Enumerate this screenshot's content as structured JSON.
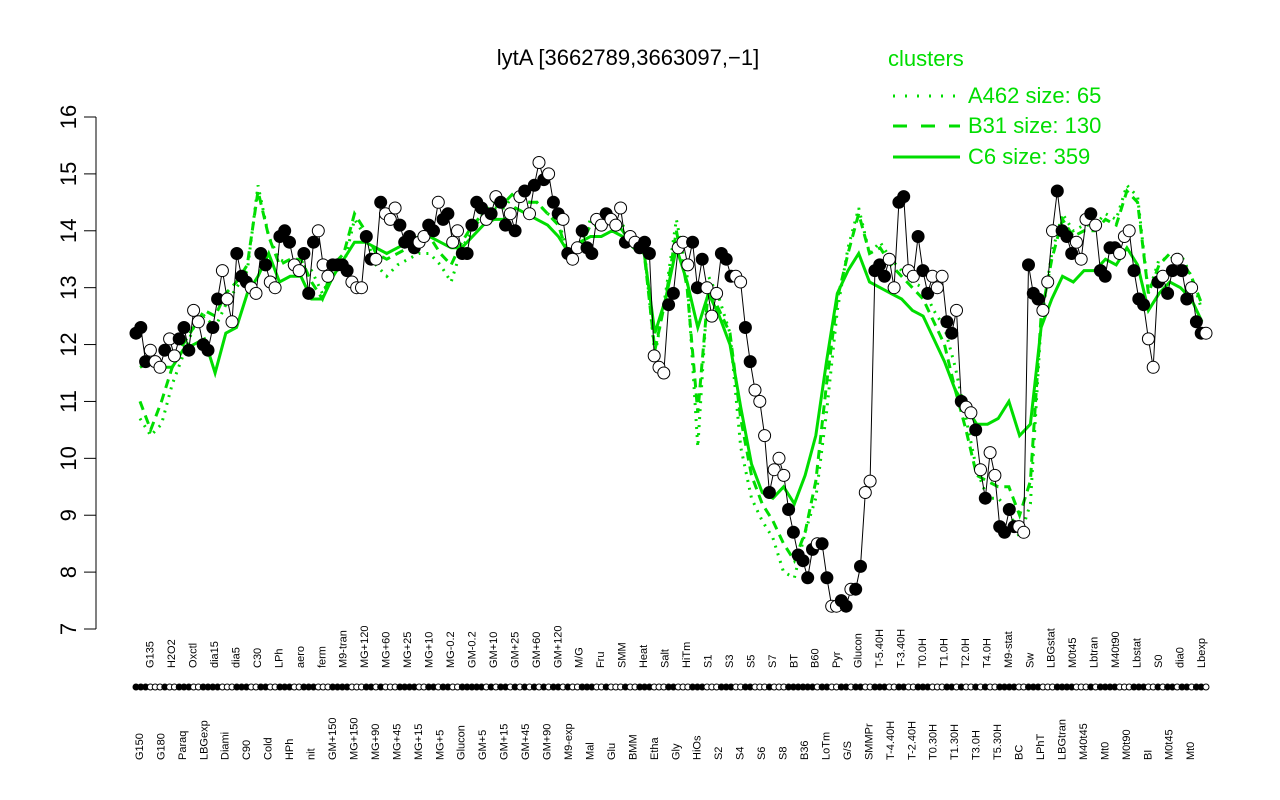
{
  "chart_data": {
    "type": "line",
    "title": "lytA [3662789,3663097,−1]",
    "xlabel": "",
    "ylabel": "",
    "ylim": [
      7,
      16
    ],
    "yticks": [
      "7",
      "8",
      "9",
      "10",
      "11",
      "12",
      "13",
      "14",
      "15",
      "16"
    ],
    "legend": {
      "title": "clusters",
      "placement": "top-right",
      "color": "#00dd00",
      "entries": [
        {
          "label": "A462 size: 65",
          "style": "dotted"
        },
        {
          "label": "B31 size: 130",
          "style": "dashed"
        },
        {
          "label": "C6 size: 359",
          "style": "solid"
        }
      ]
    },
    "tick_labels_row1": [
      "G150",
      "G135",
      "G180",
      "H2O2",
      "Paraq",
      "Oxctl",
      "LBGexp",
      "dia15",
      "Diami",
      "dia5",
      "C90",
      "C30",
      "Cold",
      "LPh",
      "HPh",
      "aero",
      "nit",
      "ferm",
      "GM+150",
      "M9-tran",
      "MG+150",
      "MG+120",
      "MG+90",
      "MG+60",
      "MG+45",
      "MG+25",
      "MG+15",
      "MG+10",
      "MG+5",
      "MG-0.2",
      "Glucon",
      "GM-0.2",
      "GM+5",
      "GM+10",
      "GM+15",
      "GM+25",
      "GM+45",
      "GM+60",
      "GM+90",
      "GM+120",
      "M9-exp",
      "M/G",
      "Mal",
      "Fru",
      "Glu",
      "SMM",
      "BMM",
      "Heat",
      "Etha",
      "Salt",
      "Gly",
      "HiTm",
      "HiOs",
      "S1",
      "S2",
      "S3",
      "S4",
      "S5",
      "S6",
      "S7",
      "S8",
      "BT",
      "B36",
      "B60",
      "LoTm",
      "Pyr",
      "G/S",
      "Glucon",
      "SMMPr",
      "T-5.40H",
      "T-4.40H",
      "T-3.40H",
      "T-2.40H",
      "T0.0H",
      "T0.30H",
      "T1.0H",
      "T1.30H",
      "T2.0H",
      "T3.0H",
      "T4.0H",
      "T5.30H",
      "M9-stat",
      "BC",
      "Sw",
      "LPhT",
      "LBGstat",
      "LBGtran",
      "M0t45",
      "M40t45",
      "Lbtran",
      "Mt0",
      "M40t90",
      "M0t90",
      "Lbstat",
      "BI",
      "S0",
      "M0t45",
      "dia0",
      "Mt0",
      "Lbexp"
    ],
    "series": [
      {
        "style": "dotted",
        "values": [
          10.7,
          10.4,
          10.6,
          11.3,
          11.8,
          12.3,
          12.5,
          12.3,
          12.7,
          13.0,
          13.3,
          14.8,
          13.9,
          13.5,
          13.4,
          13.4,
          13.3,
          12.9,
          13.3,
          13.4,
          14.2,
          13.9,
          13.4,
          13.2,
          13.4,
          13.5,
          13.6,
          13.6,
          13.4,
          13.1,
          13.7,
          14.0,
          14.3,
          14.4,
          14.4,
          14.7,
          14.5,
          14.5,
          14.3,
          14.2,
          13.5,
          13.7,
          14.2,
          14.1,
          14.2,
          14.1,
          13.8,
          13.7,
          11.8,
          12.9,
          14.2,
          13.2,
          10.2,
          13.2,
          12.8,
          12.2,
          10.2,
          9.3,
          8.9,
          8.6,
          8.0,
          7.9,
          8.7,
          9.3,
          10.8,
          12.6,
          13.7,
          14.4,
          13.6,
          13.8,
          13.5,
          13.3,
          13.1,
          13.0,
          12.6,
          12.3,
          11.6,
          10.7,
          9.8,
          9.3,
          9.3,
          9.1,
          8.6,
          9.2,
          12.4,
          13.6,
          14.3,
          14.0,
          14.1,
          14.1,
          14.3,
          14.2,
          14.8,
          14.6,
          12.9,
          13.5,
          13.5,
          13.6,
          13.2,
          12.6
        ]
      },
      {
        "style": "dashed",
        "values": [
          11.0,
          10.5,
          11.0,
          11.6,
          12.0,
          12.3,
          12.6,
          12.5,
          12.9,
          13.1,
          13.4,
          14.7,
          13.9,
          13.4,
          13.5,
          13.5,
          13.1,
          12.8,
          13.4,
          13.6,
          14.3,
          14.0,
          13.6,
          13.5,
          13.6,
          13.7,
          13.8,
          13.9,
          13.6,
          13.4,
          13.8,
          14.1,
          14.3,
          14.5,
          14.5,
          14.7,
          14.5,
          14.5,
          14.3,
          14.1,
          13.5,
          13.7,
          14.1,
          14.1,
          14.2,
          14.0,
          13.7,
          13.6,
          11.9,
          12.8,
          14.0,
          13.0,
          10.8,
          13.0,
          12.6,
          12.2,
          10.7,
          9.7,
          9.2,
          8.9,
          8.5,
          8.2,
          8.7,
          9.6,
          11.3,
          12.8,
          13.6,
          14.3,
          13.6,
          13.7,
          13.4,
          13.2,
          13.0,
          12.8,
          12.4,
          12.0,
          11.2,
          10.5,
          9.7,
          9.6,
          9.5,
          9.5,
          9.0,
          9.6,
          12.5,
          13.5,
          14.2,
          13.9,
          14.0,
          14.0,
          14.2,
          14.1,
          14.7,
          14.5,
          12.9,
          13.4,
          13.6,
          13.5,
          13.2,
          12.7
        ]
      },
      {
        "style": "solid",
        "values": [
          11.6,
          11.7,
          11.6,
          11.6,
          11.9,
          12.0,
          12.1,
          11.5,
          12.2,
          12.3,
          12.9,
          13.2,
          13.6,
          13.1,
          13.2,
          13.2,
          12.8,
          12.8,
          13.2,
          13.5,
          13.8,
          13.8,
          13.7,
          13.6,
          13.7,
          13.8,
          13.9,
          13.9,
          13.8,
          13.7,
          13.7,
          13.9,
          14.1,
          14.2,
          14.2,
          14.4,
          14.3,
          14.2,
          14.1,
          13.9,
          13.6,
          13.8,
          13.9,
          13.9,
          14.0,
          13.9,
          13.7,
          13.6,
          12.2,
          12.8,
          13.7,
          13.1,
          12.3,
          12.9,
          12.5,
          12.0,
          10.9,
          9.9,
          9.4,
          9.3,
          9.5,
          9.2,
          9.7,
          10.4,
          11.7,
          12.9,
          13.3,
          13.6,
          13.1,
          13.0,
          12.9,
          12.8,
          12.6,
          12.5,
          12.1,
          11.7,
          11.2,
          10.9,
          10.6,
          10.6,
          10.7,
          11.0,
          10.4,
          10.6,
          12.3,
          12.8,
          13.2,
          13.1,
          13.3,
          13.3,
          13.5,
          13.4,
          13.7,
          13.4,
          12.6,
          12.9,
          13.1,
          13.0,
          12.8,
          12.4
        ]
      }
    ],
    "points": [
      {
        "v": 12.2,
        "f": 1
      },
      {
        "v": 12.3,
        "f": 1
      },
      {
        "v": 11.7,
        "f": 1
      },
      {
        "v": 11.9,
        "f": 0
      },
      {
        "v": 11.7,
        "f": 0
      },
      {
        "v": 11.6,
        "f": 0
      },
      {
        "v": 11.9,
        "f": 1
      },
      {
        "v": 12.1,
        "f": 0
      },
      {
        "v": 11.8,
        "f": 0
      },
      {
        "v": 12.1,
        "f": 1
      },
      {
        "v": 12.3,
        "f": 1
      },
      {
        "v": 11.9,
        "f": 1
      },
      {
        "v": 12.6,
        "f": 0
      },
      {
        "v": 12.4,
        "f": 0
      },
      {
        "v": 12.0,
        "f": 1
      },
      {
        "v": 11.9,
        "f": 1
      },
      {
        "v": 12.3,
        "f": 1
      },
      {
        "v": 12.8,
        "f": 1
      },
      {
        "v": 13.3,
        "f": 0
      },
      {
        "v": 12.8,
        "f": 0
      },
      {
        "v": 12.4,
        "f": 0
      },
      {
        "v": 13.6,
        "f": 1
      },
      {
        "v": 13.2,
        "f": 1
      },
      {
        "v": 13.1,
        "f": 1
      },
      {
        "v": 13.0,
        "f": 0
      },
      {
        "v": 12.9,
        "f": 0
      },
      {
        "v": 13.6,
        "f": 1
      },
      {
        "v": 13.4,
        "f": 1
      },
      {
        "v": 13.1,
        "f": 0
      },
      {
        "v": 13.0,
        "f": 0
      },
      {
        "v": 13.9,
        "f": 1
      },
      {
        "v": 14.0,
        "f": 1
      },
      {
        "v": 13.8,
        "f": 1
      },
      {
        "v": 13.4,
        "f": 0
      },
      {
        "v": 13.3,
        "f": 0
      },
      {
        "v": 13.6,
        "f": 1
      },
      {
        "v": 12.9,
        "f": 1
      },
      {
        "v": 13.8,
        "f": 1
      },
      {
        "v": 14.0,
        "f": 0
      },
      {
        "v": 13.4,
        "f": 0
      },
      {
        "v": 13.2,
        "f": 0
      },
      {
        "v": 13.4,
        "f": 1
      },
      {
        "v": 13.4,
        "f": 1
      },
      {
        "v": 13.4,
        "f": 1
      },
      {
        "v": 13.3,
        "f": 1
      },
      {
        "v": 13.1,
        "f": 0
      },
      {
        "v": 13.0,
        "f": 0
      },
      {
        "v": 13.0,
        "f": 0
      },
      {
        "v": 13.9,
        "f": 1
      },
      {
        "v": 13.5,
        "f": 1
      },
      {
        "v": 13.5,
        "f": 0
      },
      {
        "v": 14.5,
        "f": 1
      },
      {
        "v": 14.3,
        "f": 0
      },
      {
        "v": 14.2,
        "f": 0
      },
      {
        "v": 14.4,
        "f": 0
      },
      {
        "v": 14.1,
        "f": 1
      },
      {
        "v": 13.8,
        "f": 1
      },
      {
        "v": 13.9,
        "f": 1
      },
      {
        "v": 13.7,
        "f": 1
      },
      {
        "v": 13.8,
        "f": 0
      },
      {
        "v": 13.9,
        "f": 0
      },
      {
        "v": 14.1,
        "f": 1
      },
      {
        "v": 14.0,
        "f": 1
      },
      {
        "v": 14.5,
        "f": 0
      },
      {
        "v": 14.2,
        "f": 1
      },
      {
        "v": 14.3,
        "f": 1
      },
      {
        "v": 13.8,
        "f": 0
      },
      {
        "v": 14.0,
        "f": 0
      },
      {
        "v": 13.6,
        "f": 1
      },
      {
        "v": 13.6,
        "f": 1
      },
      {
        "v": 14.1,
        "f": 1
      },
      {
        "v": 14.5,
        "f": 1
      },
      {
        "v": 14.4,
        "f": 1
      },
      {
        "v": 14.2,
        "f": 0
      },
      {
        "v": 14.3,
        "f": 1
      },
      {
        "v": 14.6,
        "f": 0
      },
      {
        "v": 14.5,
        "f": 1
      },
      {
        "v": 14.1,
        "f": 1
      },
      {
        "v": 14.3,
        "f": 0
      },
      {
        "v": 14.0,
        "f": 1
      },
      {
        "v": 14.6,
        "f": 0
      },
      {
        "v": 14.7,
        "f": 1
      },
      {
        "v": 14.3,
        "f": 0
      },
      {
        "v": 14.8,
        "f": 1
      },
      {
        "v": 15.2,
        "f": 0
      },
      {
        "v": 14.9,
        "f": 1
      },
      {
        "v": 15.0,
        "f": 0
      },
      {
        "v": 14.5,
        "f": 1
      },
      {
        "v": 14.3,
        "f": 1
      },
      {
        "v": 14.2,
        "f": 0
      },
      {
        "v": 13.6,
        "f": 1
      },
      {
        "v": 13.5,
        "f": 0
      },
      {
        "v": 13.7,
        "f": 0
      },
      {
        "v": 14.0,
        "f": 1
      },
      {
        "v": 13.7,
        "f": 1
      },
      {
        "v": 13.6,
        "f": 1
      },
      {
        "v": 14.2,
        "f": 0
      },
      {
        "v": 14.1,
        "f": 0
      },
      {
        "v": 14.3,
        "f": 1
      },
      {
        "v": 14.2,
        "f": 0
      },
      {
        "v": 14.1,
        "f": 0
      },
      {
        "v": 14.4,
        "f": 0
      },
      {
        "v": 13.8,
        "f": 1
      },
      {
        "v": 13.9,
        "f": 0
      },
      {
        "v": 13.8,
        "f": 0
      },
      {
        "v": 13.7,
        "f": 1
      },
      {
        "v": 13.8,
        "f": 1
      },
      {
        "v": 13.6,
        "f": 1
      },
      {
        "v": 11.8,
        "f": 0
      },
      {
        "v": 11.6,
        "f": 0
      },
      {
        "v": 11.5,
        "f": 0
      },
      {
        "v": 12.7,
        "f": 1
      },
      {
        "v": 12.9,
        "f": 1
      },
      {
        "v": 13.7,
        "f": 0
      },
      {
        "v": 13.8,
        "f": 0
      },
      {
        "v": 13.4,
        "f": 0
      },
      {
        "v": 13.8,
        "f": 1
      },
      {
        "v": 13.0,
        "f": 1
      },
      {
        "v": 13.5,
        "f": 1
      },
      {
        "v": 13.0,
        "f": 0
      },
      {
        "v": 12.5,
        "f": 0
      },
      {
        "v": 12.9,
        "f": 0
      },
      {
        "v": 13.6,
        "f": 1
      },
      {
        "v": 13.5,
        "f": 1
      },
      {
        "v": 13.2,
        "f": 1
      },
      {
        "v": 13.2,
        "f": 0
      },
      {
        "v": 13.1,
        "f": 0
      },
      {
        "v": 12.3,
        "f": 1
      },
      {
        "v": 11.7,
        "f": 1
      },
      {
        "v": 11.2,
        "f": 0
      },
      {
        "v": 11.0,
        "f": 0
      },
      {
        "v": 10.4,
        "f": 0
      },
      {
        "v": 9.4,
        "f": 1
      },
      {
        "v": 9.8,
        "f": 0
      },
      {
        "v": 10.0,
        "f": 0
      },
      {
        "v": 9.7,
        "f": 0
      },
      {
        "v": 9.1,
        "f": 1
      },
      {
        "v": 8.7,
        "f": 1
      },
      {
        "v": 8.3,
        "f": 1
      },
      {
        "v": 8.2,
        "f": 1
      },
      {
        "v": 7.9,
        "f": 1
      },
      {
        "v": 8.4,
        "f": 1
      },
      {
        "v": 8.5,
        "f": 0
      },
      {
        "v": 8.5,
        "f": 1
      },
      {
        "v": 7.9,
        "f": 1
      },
      {
        "v": 7.4,
        "f": 0
      },
      {
        "v": 7.4,
        "f": 0
      },
      {
        "v": 7.5,
        "f": 1
      },
      {
        "v": 7.4,
        "f": 1
      },
      {
        "v": 7.7,
        "f": 0
      },
      {
        "v": 7.7,
        "f": 1
      },
      {
        "v": 8.1,
        "f": 1
      },
      {
        "v": 9.4,
        "f": 0
      },
      {
        "v": 9.6,
        "f": 0
      },
      {
        "v": 13.3,
        "f": 1
      },
      {
        "v": 13.4,
        "f": 1
      },
      {
        "v": 13.2,
        "f": 1
      },
      {
        "v": 13.5,
        "f": 0
      },
      {
        "v": 13.0,
        "f": 0
      },
      {
        "v": 14.5,
        "f": 1
      },
      {
        "v": 14.6,
        "f": 1
      },
      {
        "v": 13.3,
        "f": 0
      },
      {
        "v": 13.2,
        "f": 0
      },
      {
        "v": 13.9,
        "f": 1
      },
      {
        "v": 13.3,
        "f": 1
      },
      {
        "v": 12.9,
        "f": 1
      },
      {
        "v": 13.2,
        "f": 0
      },
      {
        "v": 13.0,
        "f": 0
      },
      {
        "v": 13.2,
        "f": 0
      },
      {
        "v": 12.4,
        "f": 1
      },
      {
        "v": 12.2,
        "f": 1
      },
      {
        "v": 12.6,
        "f": 0
      },
      {
        "v": 11.0,
        "f": 1
      },
      {
        "v": 10.9,
        "f": 0
      },
      {
        "v": 10.8,
        "f": 0
      },
      {
        "v": 10.5,
        "f": 1
      },
      {
        "v": 9.8,
        "f": 0
      },
      {
        "v": 9.3,
        "f": 1
      },
      {
        "v": 10.1,
        "f": 0
      },
      {
        "v": 9.7,
        "f": 0
      },
      {
        "v": 8.8,
        "f": 1
      },
      {
        "v": 8.7,
        "f": 1
      },
      {
        "v": 9.1,
        "f": 1
      },
      {
        "v": 8.8,
        "f": 1
      },
      {
        "v": 8.8,
        "f": 0
      },
      {
        "v": 8.7,
        "f": 0
      },
      {
        "v": 13.4,
        "f": 1
      },
      {
        "v": 12.9,
        "f": 1
      },
      {
        "v": 12.8,
        "f": 1
      },
      {
        "v": 12.6,
        "f": 0
      },
      {
        "v": 13.1,
        "f": 0
      },
      {
        "v": 14.0,
        "f": 0
      },
      {
        "v": 14.7,
        "f": 1
      },
      {
        "v": 14.0,
        "f": 1
      },
      {
        "v": 13.9,
        "f": 1
      },
      {
        "v": 13.6,
        "f": 1
      },
      {
        "v": 13.8,
        "f": 0
      },
      {
        "v": 13.5,
        "f": 0
      },
      {
        "v": 14.2,
        "f": 0
      },
      {
        "v": 14.3,
        "f": 1
      },
      {
        "v": 14.1,
        "f": 0
      },
      {
        "v": 13.3,
        "f": 1
      },
      {
        "v": 13.2,
        "f": 1
      },
      {
        "v": 13.7,
        "f": 1
      },
      {
        "v": 13.7,
        "f": 1
      },
      {
        "v": 13.6,
        "f": 0
      },
      {
        "v": 13.9,
        "f": 0
      },
      {
        "v": 14.0,
        "f": 0
      },
      {
        "v": 13.3,
        "f": 1
      },
      {
        "v": 12.8,
        "f": 1
      },
      {
        "v": 12.7,
        "f": 1
      },
      {
        "v": 12.1,
        "f": 0
      },
      {
        "v": 11.6,
        "f": 0
      },
      {
        "v": 13.1,
        "f": 1
      },
      {
        "v": 13.2,
        "f": 0
      },
      {
        "v": 12.9,
        "f": 1
      },
      {
        "v": 13.3,
        "f": 1
      },
      {
        "v": 13.5,
        "f": 0
      },
      {
        "v": 13.3,
        "f": 1
      },
      {
        "v": 12.8,
        "f": 1
      },
      {
        "v": 13.0,
        "f": 0
      },
      {
        "v": 12.4,
        "f": 1
      },
      {
        "v": 12.2,
        "f": 1
      },
      {
        "v": 12.2,
        "f": 0
      }
    ]
  }
}
